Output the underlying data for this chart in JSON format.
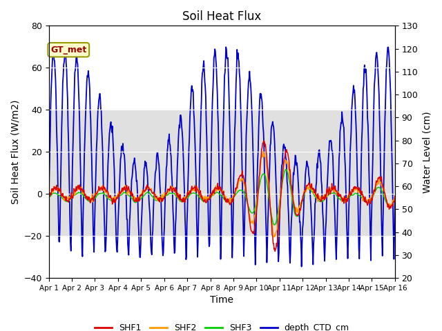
{
  "title": "Soil Heat Flux",
  "xlabel": "Time",
  "ylabel_left": "Soil Heat Flux (W/m2)",
  "ylabel_right": "Water Level (cm)",
  "xlim_days": [
    0,
    15
  ],
  "ylim_left": [
    -40,
    80
  ],
  "ylim_right": [
    20,
    130
  ],
  "annotation_text": "GT_met",
  "annotation_bg": "#ffffcc",
  "annotation_fg": "#990000",
  "annotation_border": "#999900",
  "bg_band_ymin": -20,
  "bg_band_ymax": 40,
  "bg_band_color": "#e0e0e0",
  "colors": {
    "SHF1": "#dd0000",
    "SHF2": "#ff9900",
    "SHF3": "#00cc00",
    "depth_CTD_cm": "#0000cc"
  },
  "legend_labels": [
    "SHF1",
    "SHF2",
    "SHF3",
    "depth_CTD_cm"
  ],
  "yticks_left": [
    -40,
    -20,
    0,
    20,
    40,
    60,
    80
  ],
  "yticks_right": [
    20,
    30,
    40,
    50,
    60,
    70,
    80,
    90,
    100,
    110,
    120,
    130
  ],
  "tick_labels": [
    "Apr 1",
    "Apr 2",
    "Apr 3",
    "Apr 4",
    "Apr 5",
    "Apr 6",
    "Apr 7",
    "Apr 8",
    "Apr 9",
    "Apr 10",
    "Apr 11",
    "Apr 12",
    "Apr 13",
    "Apr 14",
    "Apr 15",
    "Apr 16"
  ],
  "tick_positions": [
    0,
    1,
    2,
    3,
    4,
    5,
    6,
    7,
    8,
    9,
    10,
    11,
    12,
    13,
    14,
    15
  ]
}
